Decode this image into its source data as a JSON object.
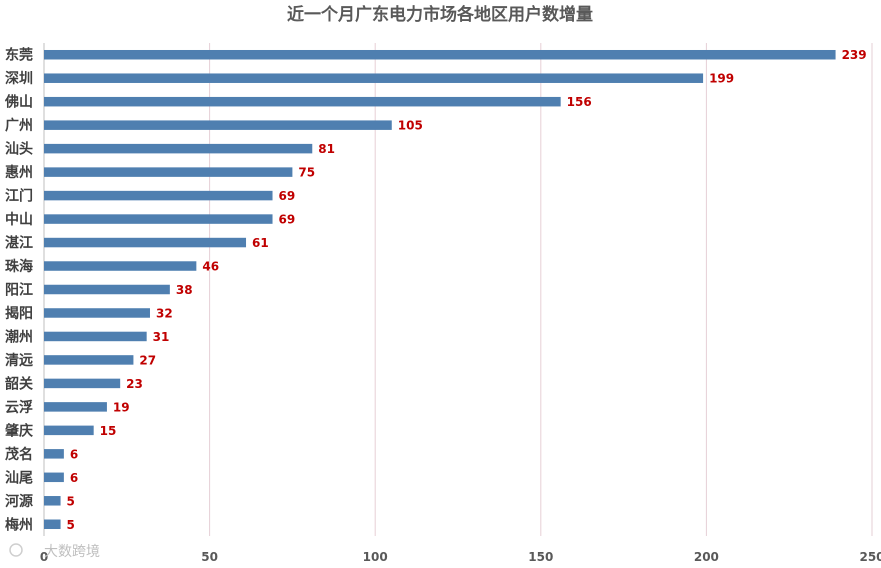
{
  "chart_data": {
    "type": "bar",
    "orientation": "horizontal",
    "title": "近一个月广东电力市场各地区用户数增量",
    "categories": [
      "东莞",
      "深圳",
      "佛山",
      "广州",
      "汕头",
      "惠州",
      "江门",
      "中山",
      "湛江",
      "珠海",
      "阳江",
      "揭阳",
      "潮州",
      "清远",
      "韶关",
      "云浮",
      "肇庆",
      "茂名",
      "汕尾",
      "河源",
      "梅州"
    ],
    "values": [
      239,
      199,
      156,
      105,
      81,
      75,
      69,
      69,
      61,
      46,
      38,
      32,
      31,
      27,
      23,
      19,
      15,
      6,
      6,
      5,
      5
    ],
    "xlim": [
      0,
      250
    ],
    "xticks": [
      0,
      50,
      100,
      150,
      200,
      250
    ],
    "grid": true,
    "xlabel": "",
    "ylabel": "",
    "bar_color": "#4f7fb0",
    "label_color": "#c00000"
  },
  "watermark": "大数跨境"
}
